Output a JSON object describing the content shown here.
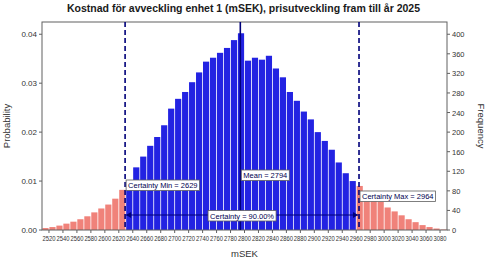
{
  "chart_data": {
    "type": "histogram",
    "title": "Kostnad för avveckling enhet 1 (mSEK), prisutveckling fram till år 2025",
    "x_label": "mSEK",
    "y_label": "Probability",
    "y2_label": "Frequency",
    "bins": [
      2510,
      2520,
      2530,
      2540,
      2550,
      2560,
      2570,
      2580,
      2590,
      2600,
      2610,
      2620,
      2630,
      2640,
      2650,
      2660,
      2670,
      2680,
      2690,
      2700,
      2710,
      2720,
      2730,
      2740,
      2750,
      2760,
      2770,
      2780,
      2790,
      2800,
      2810,
      2820,
      2830,
      2840,
      2850,
      2860,
      2870,
      2880,
      2890,
      2900,
      2910,
      2920,
      2930,
      2940,
      2950,
      2960,
      2970,
      2980,
      2990,
      3000,
      3010,
      3020,
      3030,
      3040,
      3050,
      3060,
      3070,
      3080,
      3090
    ],
    "series": [
      {
        "axis": "y2",
        "values": [
          4,
          6,
          9,
          13,
          17,
          22,
          28,
          36,
          44,
          52,
          64,
          82,
          100,
          128,
          150,
          172,
          190,
          214,
          248,
          268,
          282,
          302,
          322,
          344,
          352,
          362,
          372,
          388,
          402,
          346,
          352,
          348,
          356,
          330,
          312,
          282,
          264,
          242,
          226,
          200,
          182,
          164,
          138,
          116,
          100,
          90,
          80,
          68,
          58,
          46,
          38,
          30,
          22,
          16,
          10,
          6,
          3,
          1
        ],
        "colors": [
          "#f0827a",
          "#f0827a",
          "#f0827a",
          "#f0827a",
          "#f0827a",
          "#f0827a",
          "#f0827a",
          "#f0827a",
          "#f0827a",
          "#f0827a",
          "#f0827a",
          "#f0827a",
          "#2323e2",
          "#2323e2",
          "#2323e2",
          "#2323e2",
          "#2323e2",
          "#2323e2",
          "#2323e2",
          "#2323e2",
          "#2323e2",
          "#2323e2",
          "#2323e2",
          "#2323e2",
          "#2323e2",
          "#2323e2",
          "#2323e2",
          "#2323e2",
          "#2323e2",
          "#2323e2",
          "#2323e2",
          "#2323e2",
          "#2323e2",
          "#2323e2",
          "#2323e2",
          "#2323e2",
          "#2323e2",
          "#2323e2",
          "#2323e2",
          "#2323e2",
          "#2323e2",
          "#2323e2",
          "#2323e2",
          "#2323e2",
          "#2323e2",
          "#f0827a",
          "#f0827a",
          "#f0827a",
          "#f0827a",
          "#f0827a",
          "#f0827a",
          "#f0827a",
          "#f0827a",
          "#f0827a",
          "#f0827a",
          "#f0827a",
          "#f0827a",
          "#f0827a"
        ]
      }
    ],
    "xlim": [
      2510,
      3090
    ],
    "xticks": [
      2520,
      2540,
      2560,
      2580,
      2600,
      2620,
      2640,
      2660,
      2680,
      2700,
      2720,
      2740,
      2760,
      2780,
      2800,
      2820,
      2840,
      2860,
      2880,
      2900,
      2920,
      2940,
      2960,
      2980,
      3000,
      3020,
      3040,
      3060,
      3080
    ],
    "ylim": [
      0,
      0.0425
    ],
    "yticks": [
      {
        "value": 0,
        "label": "0.00"
      },
      {
        "value": 0.01,
        "label": "0.01"
      },
      {
        "value": 0.02,
        "label": "0.02"
      },
      {
        "value": 0.03,
        "label": "0.03"
      },
      {
        "value": 0.04,
        "label": "0.04"
      }
    ],
    "y2lim": [
      0,
      425
    ],
    "y2ticks": [
      0,
      40,
      80,
      120,
      160,
      200,
      240,
      280,
      320,
      360,
      400
    ],
    "grid": false,
    "markers": [
      {
        "label": "Certainty Min = 2629",
        "value": 2629,
        "line_style": "dashed"
      },
      {
        "label": "Mean = 2794",
        "value": 2794,
        "line_style": "solid"
      },
      {
        "label": "Certainty Max = 2964",
        "value": 2964,
        "line_style": "dashed"
      }
    ],
    "certainty": {
      "label": "Certainty = 90.00%",
      "value": 90
    }
  }
}
